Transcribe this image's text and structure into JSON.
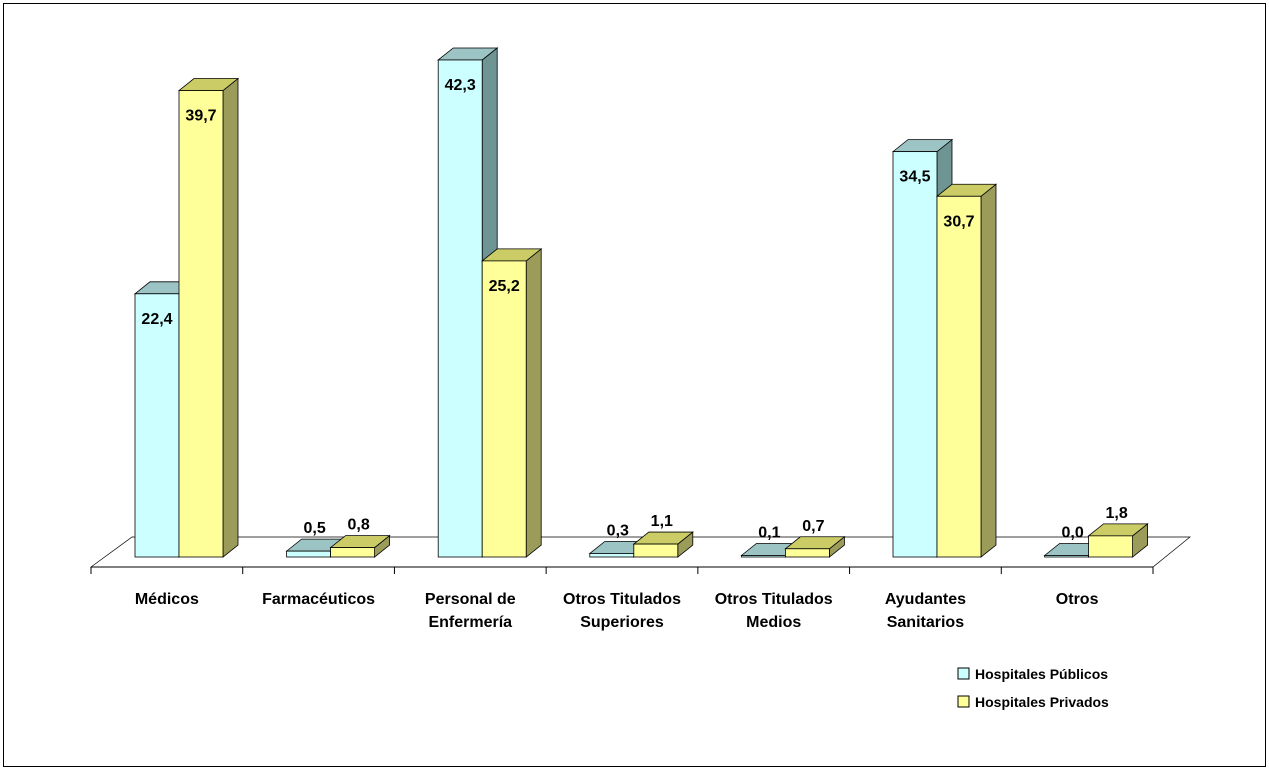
{
  "chart_data": {
    "type": "bar",
    "title": "",
    "xlabel": "",
    "ylabel": "",
    "ylim": [
      0,
      45
    ],
    "grid": false,
    "legend_position": "bottom-right",
    "categories": [
      [
        "Médicos"
      ],
      [
        "Farmacéuticos"
      ],
      [
        "Personal de",
        "Enfermería"
      ],
      [
        "Otros Titulados",
        "Superiores"
      ],
      [
        "Otros Titulados",
        "Medios"
      ],
      [
        "Ayudantes",
        "Sanitarios"
      ],
      [
        "Otros"
      ]
    ],
    "series": [
      {
        "name": "Hospitales Públicos",
        "values": [
          22.4,
          0.5,
          42.3,
          0.3,
          0.1,
          34.5,
          0.0
        ],
        "labels": [
          "22,4",
          "0,5",
          "42,3",
          "0,3",
          "0,1",
          "34,5",
          "0,0"
        ],
        "color": "#ccffff",
        "side_color": "#6e9494"
      },
      {
        "name": "Hospitales Privados",
        "values": [
          39.7,
          0.8,
          25.2,
          1.1,
          0.7,
          30.7,
          1.8
        ],
        "labels": [
          "39,7",
          "0,8",
          "25,2",
          "1,1",
          "0,7",
          "30,7",
          "1,8"
        ],
        "color": "#ffff99",
        "side_color": "#9c9c5a"
      }
    ]
  }
}
